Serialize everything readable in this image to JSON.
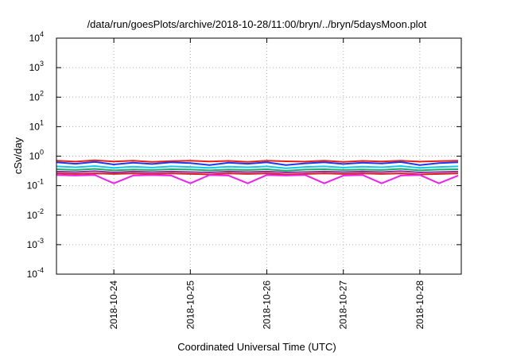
{
  "chart_data": {
    "type": "line",
    "title": "/data/run/goesPlots/archive/2018-10-28/11:00/bryn/../bryn/5daysMoon.plot",
    "xlabel": "Coordinated Universal Time (UTC)",
    "ylabel": "cSv/day",
    "yscale": "log",
    "ylim": [
      0.0001,
      10000
    ],
    "xlim": [
      "2018-10-23T06:00",
      "2018-10-28T13:00"
    ],
    "grid": true,
    "y_ticks": [
      {
        "base": "10",
        "exp": "-4"
      },
      {
        "base": "10",
        "exp": "-3"
      },
      {
        "base": "10",
        "exp": "-2"
      },
      {
        "base": "10",
        "exp": "-1"
      },
      {
        "base": "10",
        "exp": "0"
      },
      {
        "base": "10",
        "exp": "1"
      },
      {
        "base": "10",
        "exp": "2"
      },
      {
        "base": "10",
        "exp": "3"
      },
      {
        "base": "10",
        "exp": "4"
      }
    ],
    "x_ticks": [
      "2018-10-24",
      "2018-10-25",
      "2018-10-26",
      "2018-10-27",
      "2018-10-28"
    ],
    "x": [
      "2018-10-23T06:00",
      "2018-10-23T12:00",
      "2018-10-23T18:00",
      "2018-10-24T00:00",
      "2018-10-24T06:00",
      "2018-10-24T12:00",
      "2018-10-24T18:00",
      "2018-10-25T00:00",
      "2018-10-25T06:00",
      "2018-10-25T12:00",
      "2018-10-25T18:00",
      "2018-10-26T00:00",
      "2018-10-26T06:00",
      "2018-10-26T12:00",
      "2018-10-26T18:00",
      "2018-10-27T00:00",
      "2018-10-27T06:00",
      "2018-10-27T12:00",
      "2018-10-27T18:00",
      "2018-10-28T00:00",
      "2018-10-28T06:00",
      "2018-10-28T12:00"
    ],
    "series": [
      {
        "color": "#e8201c",
        "values": [
          0.7,
          0.65,
          0.72,
          0.66,
          0.7,
          0.64,
          0.68,
          0.7,
          0.66,
          0.69,
          0.64,
          0.7,
          0.67,
          0.65,
          0.7,
          0.64,
          0.69,
          0.66,
          0.7,
          0.65,
          0.68,
          0.7
        ]
      },
      {
        "color": "#2038e8",
        "values": [
          0.62,
          0.55,
          0.64,
          0.52,
          0.6,
          0.54,
          0.62,
          0.58,
          0.5,
          0.6,
          0.55,
          0.62,
          0.5,
          0.57,
          0.62,
          0.54,
          0.6,
          0.56,
          0.63,
          0.5,
          0.58,
          0.62
        ]
      },
      {
        "color": "#14c8e8",
        "values": [
          0.45,
          0.42,
          0.46,
          0.4,
          0.44,
          0.41,
          0.45,
          0.43,
          0.4,
          0.44,
          0.42,
          0.45,
          0.39,
          0.43,
          0.45,
          0.41,
          0.44,
          0.42,
          0.46,
          0.4,
          0.43,
          0.45
        ]
      },
      {
        "color": "#18b06a",
        "values": [
          0.36,
          0.34,
          0.37,
          0.33,
          0.35,
          0.34,
          0.36,
          0.35,
          0.33,
          0.35,
          0.34,
          0.36,
          0.32,
          0.35,
          0.36,
          0.34,
          0.35,
          0.34,
          0.37,
          0.33,
          0.35,
          0.36
        ]
      },
      {
        "color": "#9a2ca0",
        "values": [
          0.3,
          0.29,
          0.31,
          0.28,
          0.3,
          0.29,
          0.3,
          0.29,
          0.28,
          0.3,
          0.29,
          0.3,
          0.28,
          0.29,
          0.3,
          0.29,
          0.3,
          0.29,
          0.31,
          0.28,
          0.29,
          0.3
        ]
      },
      {
        "color": "#d02020",
        "values": [
          0.26,
          0.25,
          0.26,
          0.25,
          0.26,
          0.25,
          0.26,
          0.25,
          0.24,
          0.26,
          0.25,
          0.26,
          0.24,
          0.25,
          0.26,
          0.25,
          0.26,
          0.25,
          0.26,
          0.24,
          0.25,
          0.26
        ]
      },
      {
        "color": "#f020f0",
        "values": [
          0.23,
          0.22,
          0.23,
          0.12,
          0.22,
          0.23,
          0.22,
          0.12,
          0.23,
          0.22,
          0.12,
          0.23,
          0.22,
          0.23,
          0.12,
          0.22,
          0.23,
          0.12,
          0.22,
          0.23,
          0.12,
          0.22
        ]
      }
    ]
  }
}
